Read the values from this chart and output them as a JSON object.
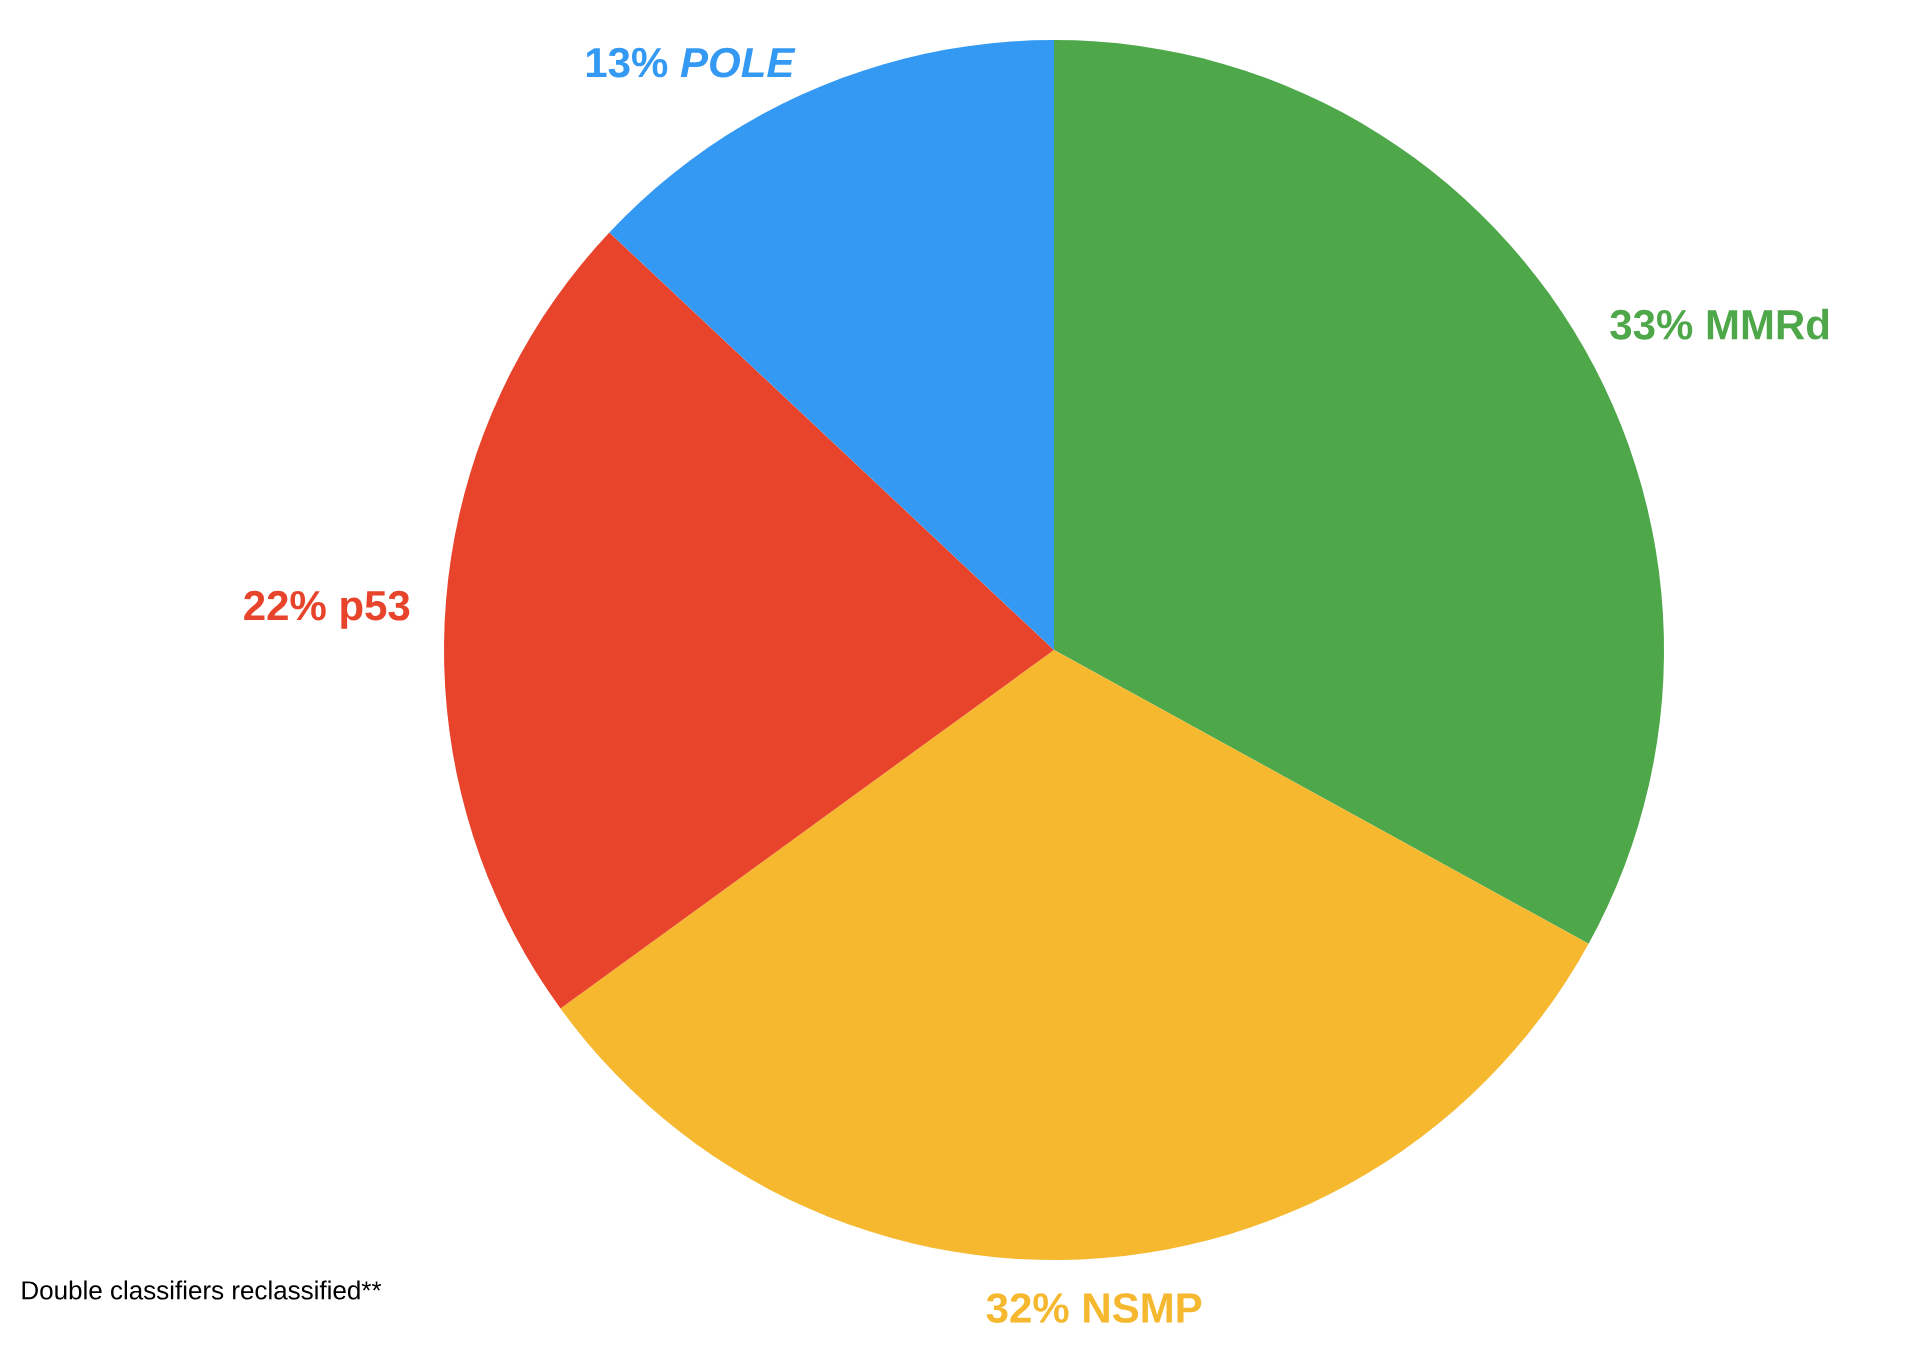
{
  "chart_data": {
    "type": "pie",
    "categories": [
      "33% MMRd",
      "32% NSMP",
      "22% p53",
      "13% *POLE*"
    ],
    "values": [
      33,
      32,
      22,
      13
    ],
    "colors": [
      "#4ea84a",
      "#f5b82e",
      "#e8432b",
      "#3399f3"
    ],
    "annotations": [
      "Double classifiers reclassified**"
    ]
  }
}
